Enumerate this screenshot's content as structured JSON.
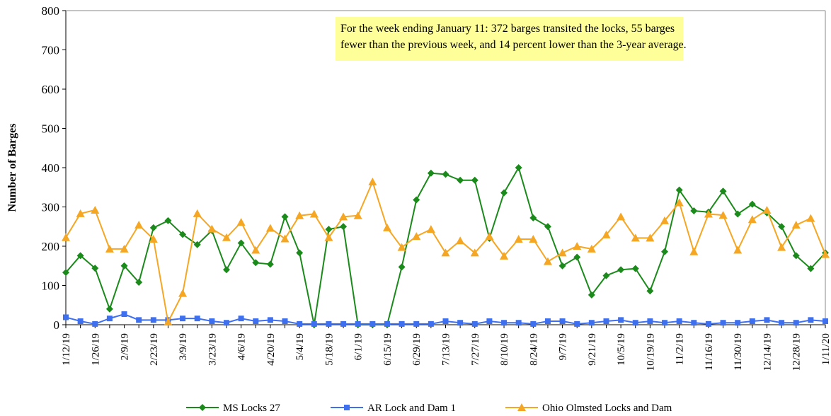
{
  "chart_data": {
    "type": "line",
    "y_label": "Number of Barges",
    "annotation": [
      "For the week ending January 11: 372 barges transited the locks, 55 barges",
      "fewer than the previous week, and 14 percent lower than the 3-year average."
    ],
    "categories": [
      "1/12/19",
      null,
      "1/26/19",
      null,
      "2/9/19",
      null,
      "2/23/19",
      null,
      "3/9/19",
      null,
      "3/23/19",
      null,
      "4/6/19",
      null,
      "4/20/19",
      null,
      "5/4/19",
      null,
      "5/18/19",
      null,
      "6/1/19",
      null,
      "6/15/19",
      null,
      "6/29/19",
      null,
      "7/13/19",
      null,
      "7/27/19",
      null,
      "8/10/19",
      null,
      "8/24/19",
      null,
      "9/7/19",
      null,
      "9/21/19",
      null,
      "10/5/19",
      null,
      "10/19/19",
      null,
      "11/2/19",
      null,
      "11/16/19",
      null,
      "11/30/19",
      null,
      "12/14/19",
      null,
      "12/28/19",
      null,
      "1/11/20"
    ],
    "series": [
      {
        "name": "MS Locks 27",
        "color": "#1a8a1a",
        "marker": "diamond",
        "values": [
          133,
          176,
          144,
          40,
          150,
          108,
          247,
          265,
          230,
          204,
          240,
          140,
          208,
          158,
          154,
          275,
          183,
          0,
          243,
          250,
          0,
          0,
          0,
          147,
          318,
          386,
          383,
          368,
          368,
          220,
          336,
          400,
          272,
          250,
          150,
          172,
          76,
          125,
          140,
          143,
          86,
          186,
          343,
          290,
          287,
          340,
          282,
          307,
          285,
          250,
          176,
          143,
          183
        ]
      },
      {
        "name": "AR Lock and Dam 1",
        "color": "#3d6fef",
        "marker": "square",
        "values": [
          19,
          9,
          2,
          16,
          27,
          12,
          12,
          12,
          16,
          16,
          9,
          5,
          16,
          9,
          12,
          9,
          2,
          2,
          2,
          2,
          2,
          2,
          2,
          2,
          2,
          2,
          9,
          5,
          2,
          9,
          5,
          5,
          2,
          9,
          9,
          2,
          5,
          9,
          12,
          5,
          9,
          5,
          9,
          5,
          2,
          5,
          5,
          9,
          12,
          5,
          5,
          12,
          9
        ]
      },
      {
        "name": "Ohio Olmsted Locks and Dam",
        "color": "#f5a623",
        "marker": "triangle",
        "values": [
          222,
          283,
          292,
          193,
          193,
          254,
          218,
          7,
          80,
          283,
          244,
          222,
          261,
          190,
          246,
          219,
          278,
          282,
          222,
          275,
          278,
          364,
          247,
          197,
          225,
          243,
          183,
          214,
          183,
          225,
          175,
          218,
          218,
          161,
          183,
          200,
          193,
          229,
          275,
          221,
          221,
          265,
          311,
          186,
          282,
          279,
          190,
          268,
          292,
          197,
          254,
          271,
          179
        ]
      }
    ],
    "ylim": [
      0,
      800
    ],
    "yticks": [
      0,
      100,
      200,
      300,
      400,
      500,
      600,
      700,
      800
    ],
    "grid": false,
    "legend": "bottom"
  }
}
